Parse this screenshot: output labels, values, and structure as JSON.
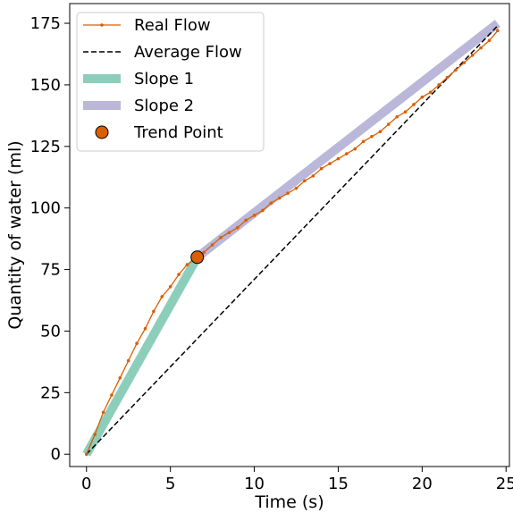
{
  "chart_data": {
    "type": "line",
    "xlabel": "Time (s)",
    "ylabel": "Quantity of water (ml)",
    "xlim": [
      -1,
      25.2
    ],
    "ylim": [
      -5,
      183
    ],
    "xticks": [
      0,
      5,
      10,
      15,
      20,
      25
    ],
    "yticks": [
      0,
      25,
      50,
      75,
      100,
      125,
      150,
      175
    ],
    "grid": false,
    "legend": "top-left",
    "colors": {
      "real_flow": "#d95f02",
      "average_flow": "#000000",
      "slope1": "#1b9e77",
      "slope2": "#7570b3",
      "trend_point": "#d95f02"
    },
    "series": [
      {
        "name": "Real Flow",
        "style": "line-dot",
        "x": [
          0,
          0.5,
          1.0,
          1.5,
          2.0,
          2.5,
          3.0,
          3.5,
          4.0,
          4.5,
          5.0,
          5.5,
          6.0,
          6.6,
          7.0,
          7.5,
          8.0,
          8.5,
          9.0,
          9.5,
          10.0,
          10.5,
          11.0,
          11.5,
          12.0,
          12.5,
          13.0,
          13.5,
          14.0,
          14.5,
          15.0,
          15.5,
          16.0,
          16.5,
          17.0,
          17.5,
          18.0,
          18.5,
          19.0,
          19.5,
          20.0,
          20.5,
          21.0,
          21.5,
          22.0,
          22.5,
          23.0,
          23.5,
          24.0,
          24.5
        ],
        "y": [
          0,
          8,
          17,
          24,
          31,
          38,
          45,
          51,
          58,
          64,
          68,
          73,
          77,
          80,
          82,
          85,
          88,
          90,
          92,
          95,
          97,
          99,
          102,
          104,
          106,
          108,
          111,
          113,
          116,
          118,
          120,
          122,
          124,
          127,
          129,
          131,
          134,
          137,
          139,
          142,
          145,
          147,
          150,
          153,
          156,
          159,
          162,
          165,
          168,
          172
        ]
      },
      {
        "name": "Average Flow",
        "style": "dashed",
        "x": [
          0,
          24.5
        ],
        "y": [
          0,
          174
        ]
      },
      {
        "name": "Slope 1",
        "style": "thick",
        "x": [
          0,
          6.6
        ],
        "y": [
          0,
          80
        ]
      },
      {
        "name": "Slope 2",
        "style": "thick",
        "x": [
          6.6,
          24.5
        ],
        "y": [
          80,
          175
        ]
      },
      {
        "name": "Trend Point",
        "style": "marker",
        "x": [
          6.6
        ],
        "y": [
          80
        ]
      }
    ]
  }
}
